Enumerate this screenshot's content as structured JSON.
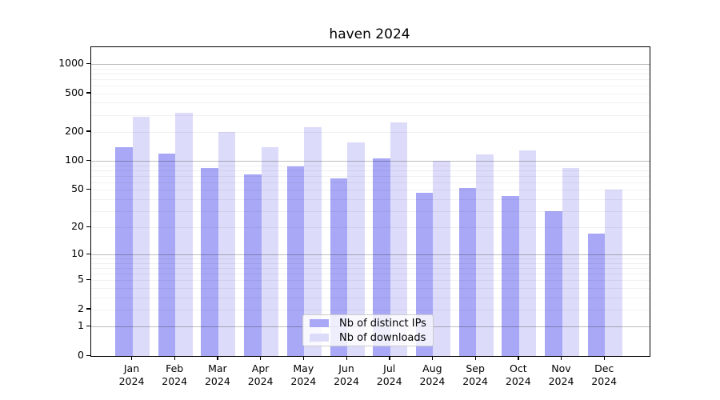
{
  "chart_data": {
    "type": "bar",
    "title": "haven 2024",
    "categories": [
      "Jan",
      "Feb",
      "Mar",
      "Apr",
      "May",
      "Jun",
      "Jul",
      "Aug",
      "Sep",
      "Oct",
      "Nov",
      "Dec"
    ],
    "xtick_year": "2024",
    "series": [
      {
        "name": "Nb of distinct IPs",
        "color": "#a8a8f6",
        "values": [
          138,
          120,
          85,
          73,
          88,
          66,
          107,
          47,
          52,
          43,
          30,
          17
        ]
      },
      {
        "name": "Nb of downloads",
        "color": "#dcdcfa",
        "values": [
          285,
          315,
          200,
          138,
          225,
          157,
          250,
          100,
          118,
          130,
          84,
          50
        ]
      }
    ],
    "yscale": "log10(1+v)",
    "ylim": [
      0,
      1490
    ],
    "yticks": [
      1000,
      500,
      200,
      100,
      50,
      20,
      10,
      5,
      2,
      1,
      0
    ],
    "grid": {
      "major_at": [
        1,
        10,
        100,
        1000
      ],
      "minor_at": "2-9 per decade"
    },
    "legend_position": "lower center"
  }
}
